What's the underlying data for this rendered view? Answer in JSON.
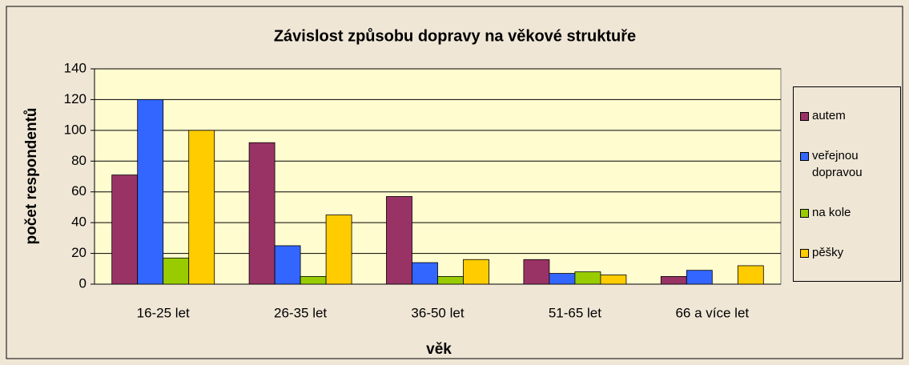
{
  "chart_data": {
    "type": "bar",
    "title": "Závislost způsobu dopravy na věkové struktuře",
    "xlabel": "věk",
    "ylabel": "počet respondentů",
    "categories": [
      "16-25 let",
      "26-35 let",
      "36-50 let",
      "51-65 let",
      "66 a více let"
    ],
    "series": [
      {
        "name": "autem",
        "color": "#993366",
        "values": [
          71,
          92,
          57,
          16,
          5
        ]
      },
      {
        "name": "veřejnou dopravou",
        "color": "#3366ff",
        "values": [
          120,
          25,
          14,
          7,
          9
        ]
      },
      {
        "name": "na kole",
        "color": "#99cc00",
        "values": [
          17,
          5,
          5,
          8,
          0
        ]
      },
      {
        "name": "pěšky",
        "color": "#ffcc00",
        "values": [
          100,
          45,
          16,
          6,
          12
        ]
      }
    ],
    "ylim": [
      0,
      140
    ],
    "yticks": [
      0,
      20,
      40,
      60,
      80,
      100,
      120,
      140
    ],
    "grid": true,
    "legend": "right"
  }
}
